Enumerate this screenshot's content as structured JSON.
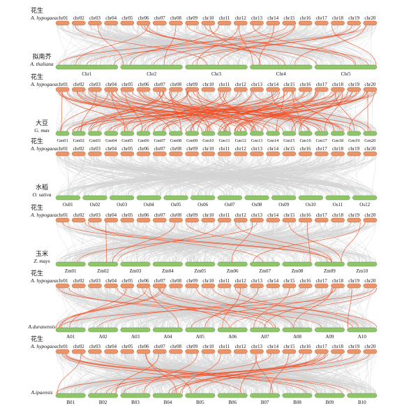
{
  "colors": {
    "top_bar": "#E8956B",
    "top_bar_stroke": "#C46A3E",
    "bottom_bar": "#8FC46A",
    "bottom_bar_stroke": "#5E9A3F",
    "background_link": "#D4D4D4",
    "highlight_link": "#F04E23"
  },
  "top_species": {
    "cn": "花生",
    "latin": "A. hypogaea",
    "chromosomes": [
      "chr01",
      "chr02",
      "chr03",
      "chr04",
      "chr05",
      "chr06",
      "chr07",
      "chr08",
      "chr09",
      "chr10",
      "chr11",
      "chr12",
      "chr13",
      "chr14",
      "chr15",
      "chr16",
      "chr17",
      "chr18",
      "chr19",
      "chr20"
    ]
  },
  "panels": [
    {
      "bottom_cn": "拟南芥",
      "bottom_latin": "A. thaliana",
      "bottom_chromosomes": [
        "Chr1",
        "Chr2",
        "Chr3",
        "Chr4",
        "Chr5"
      ],
      "highlight_density": "medium",
      "background_density": "high"
    },
    {
      "bottom_cn": "大豆",
      "bottom_latin": "G. max",
      "bottom_chromosomes": [
        "Gm01",
        "Gm02",
        "Gm03",
        "Gm04",
        "Gm05",
        "Gm06",
        "Gm07",
        "Gm08",
        "Gm09",
        "Gm10",
        "Gm11",
        "Gm12",
        "Gm13",
        "Gm14",
        "Gm15",
        "Gm16",
        "Gm17",
        "Gm18",
        "Gm19",
        "Gm20"
      ],
      "highlight_density": "very high",
      "background_density": "very high"
    },
    {
      "bottom_cn": "水稻",
      "bottom_latin": "O. sativa",
      "bottom_chromosomes": [
        "Os01",
        "Os02",
        "Os03",
        "Os04",
        "Os05",
        "Os06",
        "Os07",
        "Os08",
        "Os09",
        "Os10",
        "Os11",
        "Os12"
      ],
      "highlight_density": "none",
      "background_density": "high"
    },
    {
      "bottom_cn": "玉米",
      "bottom_latin": "Z. mays",
      "bottom_chromosomes": [
        "Zm01",
        "Zm02",
        "Zm03",
        "Zm04",
        "Zm05",
        "Zm06",
        "Zm07",
        "Zm08",
        "Zm09",
        "Zm10"
      ],
      "highlight_density": "low",
      "background_density": "high"
    },
    {
      "bottom_cn": "",
      "bottom_latin": "A.duranensis",
      "bottom_chromosomes": [
        "A01",
        "A02",
        "A03",
        "A04",
        "A05",
        "A06",
        "A07",
        "A08",
        "A09",
        "A10"
      ],
      "highlight_density": "medium",
      "background_density": "very high"
    },
    {
      "bottom_cn": "",
      "bottom_latin": "A.ipaensis",
      "bottom_chromosomes": [
        "B01",
        "B02",
        "B03",
        "B04",
        "B05",
        "B06",
        "B07",
        "B08",
        "B09",
        "B10"
      ],
      "highlight_density": "medium",
      "background_density": "very high"
    }
  ]
}
